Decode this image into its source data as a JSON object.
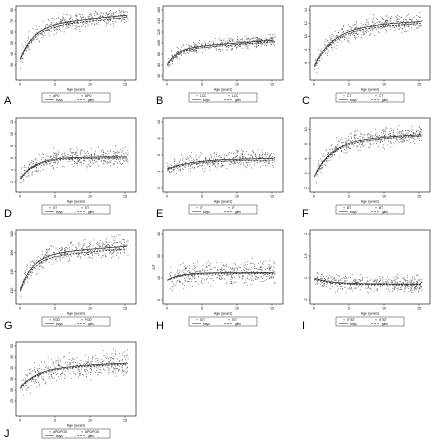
{
  "figure": {
    "legend_labels": {
      "boys": "boys",
      "girls": "girls"
    },
    "colors": {
      "points": "#444444",
      "frame": "#000000",
      "line": "#222222"
    }
  },
  "chart_data": [
    {
      "panel": "A",
      "type": "scatter",
      "xlabel": "Age (years)",
      "ylabel": "",
      "xlim": [
        0,
        16
      ],
      "ylim": [
        20,
        80
      ],
      "x_ticks": [
        "0",
        "5",
        "10",
        "15"
      ],
      "y_ticks": [
        "30",
        "40",
        "50",
        "60",
        "70",
        "80"
      ],
      "legend": [
        "APD",
        "APD"
      ],
      "series": [
        {
          "name": "boys",
          "start": 35,
          "asymptote": 66,
          "rate": 0.5,
          "drift": 0.6,
          "spread": 7
        },
        {
          "name": "girls",
          "start": 34,
          "asymptote": 64,
          "rate": 0.5,
          "drift": 0.6,
          "spread": 7
        }
      ]
    },
    {
      "panel": "B",
      "type": "scatter",
      "xlabel": "Age (years)",
      "ylabel": "",
      "xlim": [
        0,
        16
      ],
      "ylim": [
        40,
        160
      ],
      "x_ticks": [
        "0",
        "5",
        "10",
        "15"
      ],
      "y_ticks": [
        "40",
        "60",
        "80",
        "100",
        "120",
        "140",
        "160"
      ],
      "legend": [
        "LCC",
        "LCC"
      ],
      "series": [
        {
          "name": "boys",
          "start": 60,
          "asymptote": 90,
          "rate": 0.7,
          "drift": 1.0,
          "spread": 10
        },
        {
          "name": "girls",
          "start": 58,
          "asymptote": 87,
          "rate": 0.7,
          "drift": 1.0,
          "spread": 10
        }
      ]
    },
    {
      "panel": "C",
      "type": "scatter",
      "xlabel": "Age (years)",
      "ylabel": "",
      "xlim": [
        0,
        16
      ],
      "ylim": [
        4,
        14
      ],
      "x_ticks": [
        "0",
        "5",
        "10",
        "15"
      ],
      "y_ticks": [
        "6",
        "8",
        "10",
        "12",
        "14"
      ],
      "legend": [
        "CT",
        "CT"
      ],
      "series": [
        {
          "name": "boys",
          "start": 5.5,
          "asymptote": 11.5,
          "rate": 0.35,
          "drift": 0.05,
          "spread": 1.2
        },
        {
          "name": "girls",
          "start": 5.3,
          "asymptote": 11.2,
          "rate": 0.35,
          "drift": 0.05,
          "spread": 1.2
        }
      ]
    },
    {
      "panel": "D",
      "type": "scatter",
      "xlabel": "Age (years)",
      "ylabel": "",
      "xlim": [
        0,
        16
      ],
      "ylim": [
        1,
        12
      ],
      "x_ticks": [
        "0",
        "5",
        "10",
        "15"
      ],
      "y_ticks": [
        "2",
        "4",
        "6",
        "8",
        "10",
        "12"
      ],
      "legend": [
        "ST",
        "ST"
      ],
      "series": [
        {
          "name": "boys",
          "start": 2.5,
          "asymptote": 6.2,
          "rate": 0.45,
          "drift": 0.0,
          "spread": 1.4
        },
        {
          "name": "girls",
          "start": 2.4,
          "asymptote": 6.0,
          "rate": 0.45,
          "drift": 0.0,
          "spread": 1.4
        }
      ]
    },
    {
      "panel": "E",
      "type": "scatter",
      "xlabel": "Age (years)",
      "ylabel": "",
      "xlim": [
        0,
        16
      ],
      "ylim": [
        2,
        10
      ],
      "x_ticks": [
        "0",
        "5",
        "10",
        "15"
      ],
      "y_ticks": [
        "2",
        "4",
        "6",
        "8",
        "10"
      ],
      "legend": [
        "IT",
        "IT"
      ],
      "series": [
        {
          "name": "boys",
          "start": 4.3,
          "asymptote": 5.6,
          "rate": 0.25,
          "drift": 0.0,
          "spread": 0.9
        },
        {
          "name": "girls",
          "start": 4.2,
          "asymptote": 5.4,
          "rate": 0.25,
          "drift": 0.0,
          "spread": 0.9
        }
      ]
    },
    {
      "panel": "F",
      "type": "scatter",
      "xlabel": "Age (years)",
      "ylabel": "",
      "xlim": [
        0,
        16
      ],
      "ylim": [
        2,
        11
      ],
      "x_ticks": [
        "0",
        "5",
        "10",
        "15"
      ],
      "y_ticks": [
        "2",
        "4",
        "6",
        "8",
        "10"
      ],
      "legend": [
        "BT",
        "BT"
      ],
      "series": [
        {
          "name": "boys",
          "start": 3.5,
          "asymptote": 8.5,
          "rate": 0.4,
          "drift": 0.05,
          "spread": 1.1
        },
        {
          "name": "girls",
          "start": 3.4,
          "asymptote": 8.3,
          "rate": 0.4,
          "drift": 0.05,
          "spread": 1.1
        }
      ]
    },
    {
      "panel": "G",
      "type": "scatter",
      "xlabel": "Age (years)",
      "ylabel": "",
      "xlim": [
        0,
        16
      ],
      "ylim": [
        110,
        180
      ],
      "x_ticks": [
        "0",
        "5",
        "10",
        "15"
      ],
      "y_ticks": [
        "120",
        "140",
        "160",
        "180"
      ],
      "legend": [
        "FOD",
        "FOD"
      ],
      "series": [
        {
          "name": "boys",
          "start": 120,
          "asymptote": 158,
          "rate": 0.55,
          "drift": 0.6,
          "spread": 9
        },
        {
          "name": "girls",
          "start": 118,
          "asymptote": 155,
          "rate": 0.55,
          "drift": 0.6,
          "spread": 9
        }
      ]
    },
    {
      "panel": "H",
      "type": "scatter",
      "xlabel": "Age (years)",
      "ylabel": "S/T",
      "xlim": [
        0,
        16
      ],
      "ylim": [
        0,
        30
      ],
      "x_ticks": [
        "0",
        "5",
        "10",
        "15"
      ],
      "y_ticks": [
        "0",
        "10",
        "20",
        "30"
      ],
      "legend": [
        "S/T",
        "S/T"
      ],
      "series": [
        {
          "name": "boys",
          "start": 9,
          "asymptote": 12.5,
          "rate": 0.5,
          "drift": 0.0,
          "spread": 4.5
        },
        {
          "name": "girls",
          "start": 8.8,
          "asymptote": 12.0,
          "rate": 0.5,
          "drift": 0.0,
          "spread": 4.5
        }
      ]
    },
    {
      "panel": "I",
      "type": "scatter",
      "xlabel": "Age (years)",
      "ylabel": "",
      "xlim": [
        0,
        16
      ],
      "ylim": [
        0.5,
        2.0
      ],
      "x_ticks": [
        "0",
        "5",
        "10",
        "15"
      ],
      "y_ticks": [
        ".5",
        "1",
        "1.5",
        "2"
      ],
      "legend": [
        "IT/ST",
        "IT/ST"
      ],
      "series": [
        {
          "name": "boys",
          "start": 1.0,
          "asymptote": 0.86,
          "rate": 0.4,
          "drift": 0.0,
          "spread": 0.16
        },
        {
          "name": "girls",
          "start": 0.98,
          "asymptote": 0.84,
          "rate": 0.4,
          "drift": 0.0,
          "spread": 0.16
        }
      ]
    },
    {
      "panel": "J",
      "type": "scatter",
      "xlabel": "Age (years)",
      "ylabel": "",
      "xlim": [
        0,
        16
      ],
      "ylim": [
        20,
        50
      ],
      "x_ticks": [
        "0",
        "5",
        "10",
        "15"
      ],
      "y_ticks": [
        "25",
        "30",
        "35",
        "40",
        "45",
        "50"
      ],
      "legend": [
        "APD/FOD",
        "APD/FOD"
      ],
      "series": [
        {
          "name": "boys",
          "start": 31,
          "asymptote": 40,
          "rate": 0.4,
          "drift": 0.15,
          "spread": 5
        },
        {
          "name": "girls",
          "start": 30.5,
          "asymptote": 39.5,
          "rate": 0.4,
          "drift": 0.15,
          "spread": 5
        }
      ]
    }
  ]
}
